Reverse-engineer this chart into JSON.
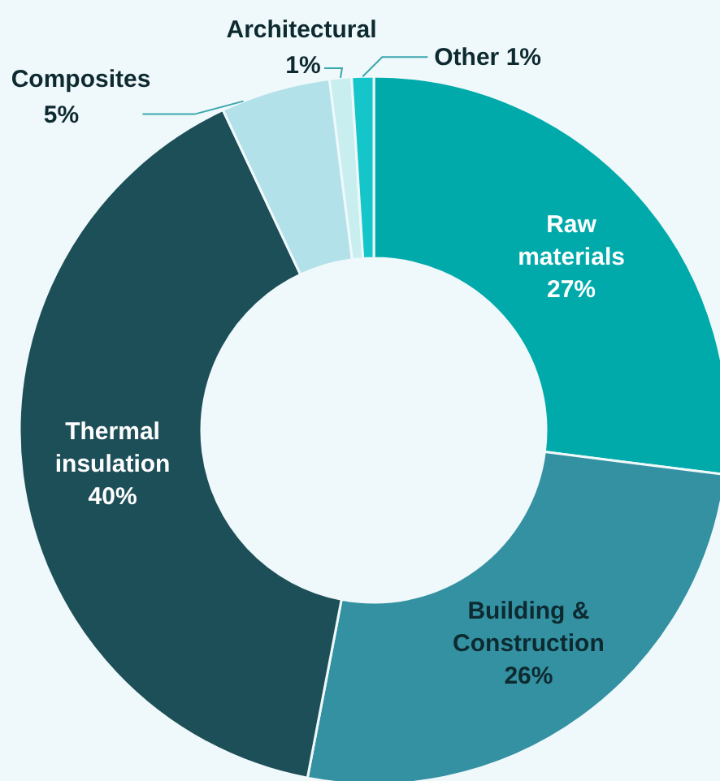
{
  "chart_data": {
    "type": "donut",
    "categories": [
      "Raw materials",
      "Building & Construction",
      "Thermal insulation",
      "Composites",
      "Architectural",
      "Other"
    ],
    "values": [
      27,
      26,
      40,
      5,
      1,
      1
    ],
    "value_labels": [
      "27%",
      "26%",
      "40%",
      "5%",
      "1%",
      "1%"
    ],
    "colors": [
      "#00aaaa",
      "#3391a2",
      "#1d4f58",
      "#b2e1e9",
      "#c9eef0",
      "#14c6c9"
    ]
  }
}
